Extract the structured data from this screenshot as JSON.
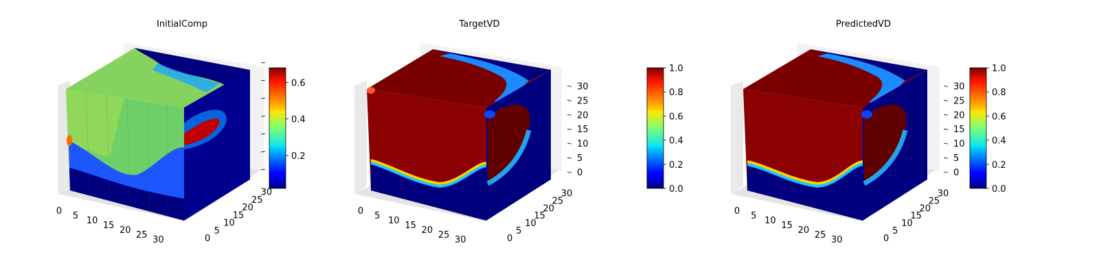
{
  "chart_data": [
    {
      "type": "heatmap",
      "variant": "3d-voxel-cube",
      "title": "InitialComp",
      "x_ticks": [
        "0",
        "5",
        "10",
        "15",
        "20",
        "25",
        "30"
      ],
      "y_ticks": [
        "0",
        "5",
        "10",
        "15",
        "20",
        "25",
        "30"
      ],
      "z_ticks": [],
      "grid": true,
      "colormap": "jet",
      "colorbar": {
        "min": 0.02,
        "max": 0.68,
        "ticks": [
          "0.2",
          "0.4",
          "0.6"
        ]
      },
      "description_values": {
        "front_face_mean": 0.45,
        "bottom_band": 0.02,
        "side_spot_max": 0.68
      }
    },
    {
      "type": "heatmap",
      "variant": "3d-voxel-cube",
      "title": "TargetVD",
      "x_ticks": [
        "0",
        "5",
        "10",
        "15",
        "20",
        "25",
        "30"
      ],
      "y_ticks": [
        "0",
        "5",
        "10",
        "15",
        "20",
        "25",
        "30"
      ],
      "z_ticks": [
        "0",
        "5",
        "10",
        "15",
        "20",
        "25",
        "30"
      ],
      "grid": true,
      "colormap": "jet",
      "colorbar": {
        "min": 0.0,
        "max": 1.0,
        "ticks": [
          "0.0",
          "0.2",
          "0.4",
          "0.6",
          "0.8",
          "1.0"
        ]
      }
    },
    {
      "type": "heatmap",
      "variant": "3d-voxel-cube",
      "title": "PredictedVD",
      "x_ticks": [
        "0",
        "5",
        "10",
        "15",
        "20",
        "25",
        "30"
      ],
      "y_ticks": [
        "0",
        "5",
        "10",
        "15",
        "20",
        "25",
        "30"
      ],
      "z_ticks": [
        "0",
        "5",
        "10",
        "15",
        "20",
        "25",
        "30"
      ],
      "grid": true,
      "colormap": "jet",
      "colorbar": {
        "min": 0.0,
        "max": 1.0,
        "ticks": [
          "0.0",
          "0.2",
          "0.4",
          "0.6",
          "0.8",
          "1.0"
        ]
      }
    }
  ],
  "colors": {
    "dark_blue": "#00007f",
    "dark_red": "#800000",
    "red": "#d40000",
    "green": "#7fcf5a",
    "cyan": "#29d6ff",
    "pane": "#f2f2f2",
    "pane_dark": "#e6e6e6",
    "grid": "#cfcfcf"
  }
}
